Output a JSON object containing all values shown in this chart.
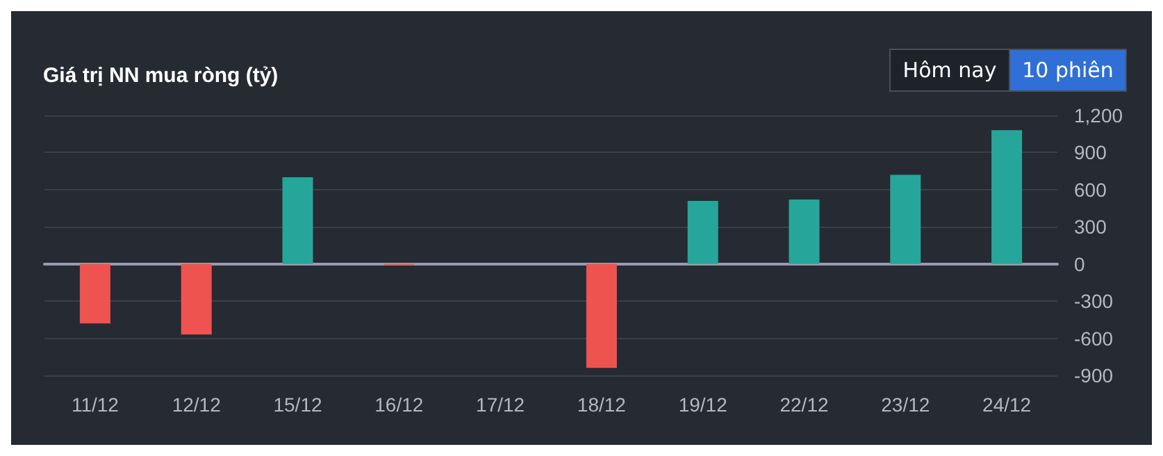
{
  "chart_data": {
    "type": "bar",
    "title": "Giá trị NN mua ròng (tỷ)",
    "categories": [
      "11/12",
      "12/12",
      "15/12",
      "16/12",
      "17/12",
      "18/12",
      "19/12",
      "22/12",
      "23/12",
      "24/12"
    ],
    "values": [
      -480,
      -570,
      700,
      -10,
      0,
      -840,
      510,
      520,
      720,
      1080
    ],
    "colors": [
      "#ef5350",
      "#ef5350",
      "#26a69a",
      "#ef5350",
      "#26a69a",
      "#ef5350",
      "#26a69a",
      "#26a69a",
      "#26a69a",
      "#26a69a"
    ],
    "ylim": [
      -900,
      1200
    ],
    "yticks": [
      -900,
      -600,
      -300,
      0,
      300,
      600,
      900,
      {
        "value": 1200,
        "label": "1,200"
      }
    ],
    "grid": "y",
    "annotations": [
      "Hôm nay",
      "10 phiên"
    ]
  }
}
